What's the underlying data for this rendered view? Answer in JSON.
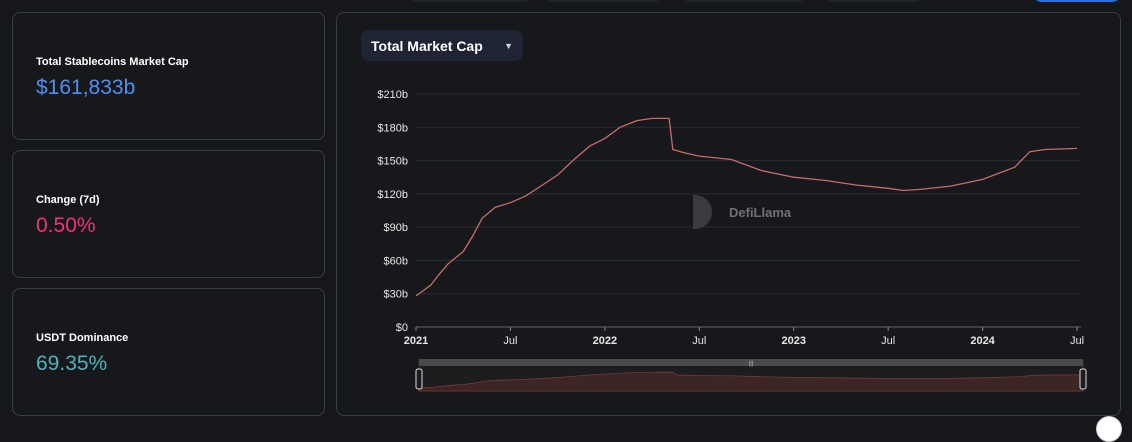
{
  "stats": [
    {
      "label": "Total Stablecoins Market Cap",
      "value": "$161,833b",
      "color": "#4f8ef7"
    },
    {
      "label": "Change (7d)",
      "value": "0.50%",
      "color": "#f0337a"
    },
    {
      "label": "USDT Dominance",
      "value": "69.35%",
      "color": "#4fb3bf"
    }
  ],
  "chart_selector": {
    "label": "Total Market Cap",
    "icon": "chevron-down-icon"
  },
  "watermark": {
    "text": "DefiLlama",
    "icon": "llama-logo-icon"
  },
  "chart_data": {
    "type": "area",
    "title": "Total Market Cap",
    "color": "#c96b6b",
    "y_ticks": [
      "$0",
      "$30b",
      "$60b",
      "$90b",
      "$120b",
      "$150b",
      "$180b",
      "$210b"
    ],
    "y_values": [
      0,
      30,
      60,
      90,
      120,
      150,
      180,
      210
    ],
    "ylim": [
      0,
      210
    ],
    "x_ticks": [
      {
        "label": "2021",
        "t": 2021.0,
        "bold": true
      },
      {
        "label": "Jul",
        "t": 2021.5,
        "bold": false
      },
      {
        "label": "2022",
        "t": 2022.0,
        "bold": true
      },
      {
        "label": "Jul",
        "t": 2022.5,
        "bold": false
      },
      {
        "label": "2023",
        "t": 2023.0,
        "bold": true
      },
      {
        "label": "Jul",
        "t": 2023.5,
        "bold": false
      },
      {
        "label": "2024",
        "t": 2024.0,
        "bold": true
      },
      {
        "label": "Jul",
        "t": 2024.5,
        "bold": false
      }
    ],
    "xlim": [
      2021.0,
      2024.5
    ],
    "series": [
      {
        "name": "Total Stablecoins Market Cap ($b)",
        "points": [
          [
            2021.0,
            28
          ],
          [
            2021.04,
            33
          ],
          [
            2021.08,
            38
          ],
          [
            2021.12,
            47
          ],
          [
            2021.17,
            57
          ],
          [
            2021.25,
            68
          ],
          [
            2021.3,
            82
          ],
          [
            2021.35,
            98
          ],
          [
            2021.42,
            108
          ],
          [
            2021.5,
            112
          ],
          [
            2021.58,
            118
          ],
          [
            2021.67,
            128
          ],
          [
            2021.75,
            137
          ],
          [
            2021.83,
            150
          ],
          [
            2021.92,
            163
          ],
          [
            2022.0,
            170
          ],
          [
            2022.08,
            180
          ],
          [
            2022.17,
            186
          ],
          [
            2022.25,
            188
          ],
          [
            2022.34,
            188
          ],
          [
            2022.36,
            160
          ],
          [
            2022.42,
            157
          ],
          [
            2022.5,
            154
          ],
          [
            2022.67,
            151
          ],
          [
            2022.83,
            141
          ],
          [
            2023.0,
            135
          ],
          [
            2023.17,
            132
          ],
          [
            2023.33,
            128
          ],
          [
            2023.5,
            125
          ],
          [
            2023.58,
            123
          ],
          [
            2023.67,
            124
          ],
          [
            2023.83,
            127
          ],
          [
            2024.0,
            133
          ],
          [
            2024.17,
            144
          ],
          [
            2024.25,
            158
          ],
          [
            2024.33,
            160
          ],
          [
            2024.5,
            161
          ]
        ]
      }
    ]
  }
}
